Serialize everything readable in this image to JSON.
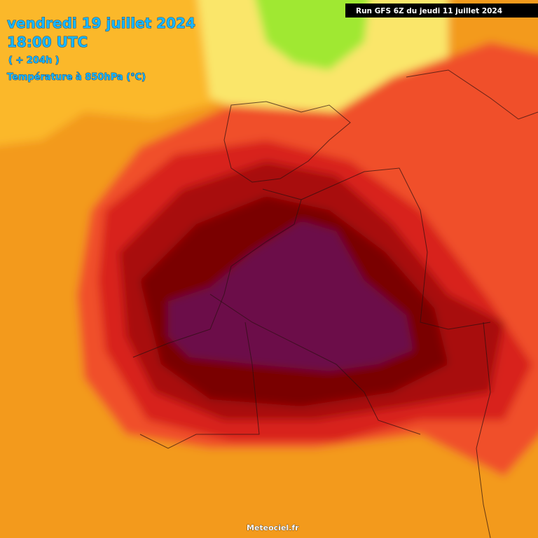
{
  "header": {
    "date": "vendredi 19 juillet 2024",
    "time": "18:00 UTC",
    "offset": "( + 204h )",
    "parameter": "Température à 850hPa (°C)",
    "run": "Run GFS 6Z du jeudi 11 juillet 2024"
  },
  "footer": {
    "credit": "Meteociel.fr"
  }
}
